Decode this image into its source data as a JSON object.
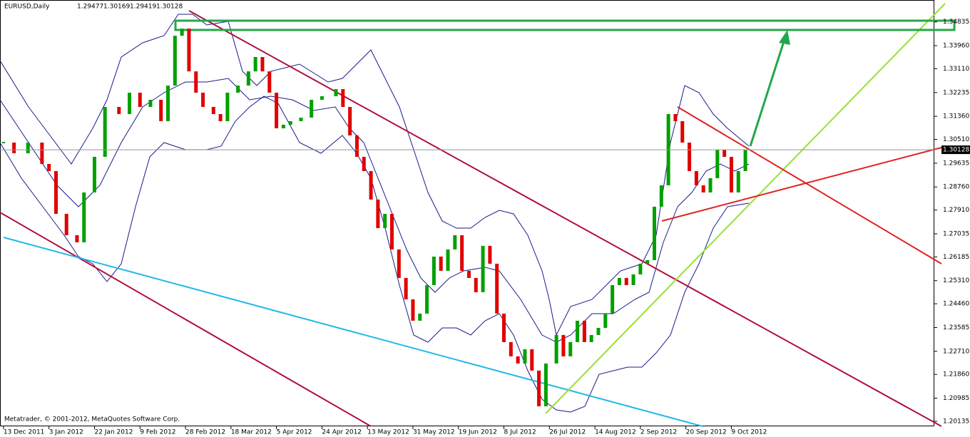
{
  "chart_data": {
    "type": "candlestick",
    "title": "EURUSD,Daily",
    "header_ohlc": [
      1.29477,
      1.30169,
      1.29419,
      1.30128
    ],
    "footer": "Metatrader, © 2001-2012, MetaQuotes Software Corp.",
    "x": [
      0,
      3,
      7,
      11,
      13,
      15,
      18,
      21,
      23,
      26,
      29,
      33,
      36,
      39,
      42,
      45,
      47,
      49,
      51,
      53,
      55,
      57,
      60,
      62,
      64,
      67,
      70,
      72,
      74,
      76,
      78,
      80,
      82,
      85,
      88,
      91,
      95,
      97,
      99,
      101,
      103,
      105,
      107,
      109,
      111,
      113,
      115,
      117,
      119,
      121,
      123,
      125,
      127,
      129,
      131,
      133,
      135,
      137,
      139,
      141,
      143,
      145,
      147,
      149,
      151,
      153,
      155,
      158,
      160,
      162,
      164,
      166,
      168,
      170,
      172,
      174,
      176,
      178,
      180,
      182,
      184,
      186,
      188,
      190,
      192,
      194,
      196,
      198,
      200,
      202,
      204,
      206,
      208,
      210,
      212
    ],
    "close": [
      1.30393,
      1.29999,
      1.30393,
      1.29606,
      1.29344,
      1.2777,
      1.26983,
      1.26721,
      1.28557,
      1.29868,
      1.31704,
      1.31442,
      1.32229,
      1.31704,
      1.31967,
      1.3118,
      1.32491,
      1.34324,
      1.34587,
      1.33013,
      1.32229,
      1.31704,
      1.31442,
      1.3118,
      1.32229,
      1.32491,
      1.33013,
      1.33541,
      1.33013,
      1.32229,
      1.30918,
      1.31049,
      1.3118,
      1.31311,
      1.31967,
      1.32098,
      1.3236,
      1.31704,
      1.30655,
      1.29868,
      1.29344,
      1.28295,
      1.27245,
      1.2777,
      1.26459,
      1.2541,
      1.24622,
      1.23836,
      1.24098,
      1.25147,
      1.26196,
      1.25672,
      1.26459,
      1.26983,
      1.25672,
      1.2541,
      1.24885,
      1.2659,
      1.25934,
      1.24098,
      1.23049,
      1.22524,
      1.22262,
      1.22786,
      1.22,
      1.20688,
      1.22262,
      1.23311,
      1.22524,
      1.23049,
      1.23836,
      1.23049,
      1.23311,
      1.23573,
      1.24098,
      1.25147,
      1.2541,
      1.25147,
      1.25541,
      1.25934,
      1.26065,
      1.28032,
      1.28819,
      1.31442,
      1.3118,
      1.30393,
      1.29344,
      1.28819,
      1.28557,
      1.29082,
      1.3013,
      1.29868,
      1.28557,
      1.29344,
      1.30128
    ],
    "current_price": 1.30128,
    "up_color": "#00a000",
    "down_color": "#e00000",
    "xlim": [
      -1,
      266
    ],
    "ylim": [
      1.1995,
      1.3564
    ],
    "xticks": [
      {
        "value": 0,
        "label": "13 Dec 2011"
      },
      {
        "value": 13,
        "label": "3 Jan 2012"
      },
      {
        "value": 26,
        "label": "22 Jan 2012"
      },
      {
        "value": 39,
        "label": "9 Feb 2012"
      },
      {
        "value": 52,
        "label": "28 Feb 2012"
      },
      {
        "value": 65,
        "label": "18 Mar 2012"
      },
      {
        "value": 78,
        "label": "5 Apr 2012"
      },
      {
        "value": 91,
        "label": "24 Apr 2012"
      },
      {
        "value": 104,
        "label": "13 May 2012"
      },
      {
        "value": 117,
        "label": "31 May 2012"
      },
      {
        "value": 130,
        "label": "19 Jun 2012"
      },
      {
        "value": 143,
        "label": "8 Jul 2012"
      },
      {
        "value": 156,
        "label": "26 Jul 2012"
      },
      {
        "value": 169,
        "label": "14 Aug 2012"
      },
      {
        "value": 182,
        "label": "2 Sep 2012"
      },
      {
        "value": 195,
        "label": "20 Sep 2012"
      },
      {
        "value": 208,
        "label": "9 Oct 2012"
      }
    ],
    "yticks": [
      {
        "value": 1.34835,
        "label": "1.34835"
      },
      {
        "value": 1.3396,
        "label": "1.33960"
      },
      {
        "value": 1.3311,
        "label": "1.33110"
      },
      {
        "value": 1.32235,
        "label": "1.32235"
      },
      {
        "value": 1.3136,
        "label": "1.31360"
      },
      {
        "value": 1.3051,
        "label": "1.30510"
      },
      {
        "value": 1.29635,
        "label": "1.29635"
      },
      {
        "value": 1.2876,
        "label": "1.28760"
      },
      {
        "value": 1.2791,
        "label": "1.27910"
      },
      {
        "value": 1.27035,
        "label": "1.27035"
      },
      {
        "value": 1.26185,
        "label": "1.26185"
      },
      {
        "value": 1.2531,
        "label": "1.25310"
      },
      {
        "value": 1.2446,
        "label": "1.24460"
      },
      {
        "value": 1.23585,
        "label": "1.23585"
      },
      {
        "value": 1.2271,
        "label": "1.22710"
      },
      {
        "value": 1.2186,
        "label": "1.21860"
      },
      {
        "value": 1.20985,
        "label": "1.20985"
      },
      {
        "value": 1.20135,
        "label": "1.20135"
      }
    ]
  }
}
